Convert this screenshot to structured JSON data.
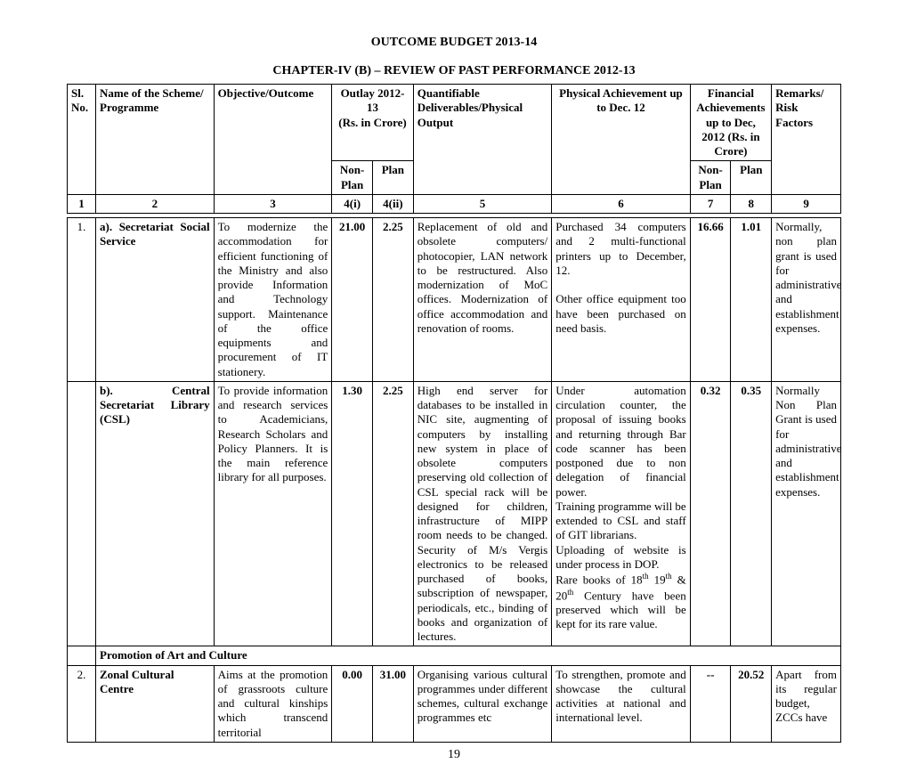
{
  "title": "OUTCOME BUDGET 2013-14",
  "chapter": "CHAPTER-IV (B) – REVIEW OF PAST PERFORMANCE 2012-13",
  "pagenum": "19",
  "head": {
    "sl": "Sl. No.",
    "name": "Name of the Scheme/ Programme",
    "obj": "Objective/Outcome",
    "outlay": "Outlay 2012-13",
    "outlay_sub": "(Rs. in Crore)",
    "deliv": "Quantifiable Deliverables/Physical Output",
    "phys": "Physical Achievement up to Dec. 12",
    "fin": "Financial Achievements up to Dec, 2012 (Rs. in Crore)",
    "rem": "Remarks/ Risk Factors",
    "nonplan": "Non-Plan",
    "plan": "Plan"
  },
  "nums": {
    "c1": "1",
    "c2": "2",
    "c3": "3",
    "c4i": "4(i)",
    "c4ii": "4(ii)",
    "c5": "5",
    "c6": "6",
    "c7": "7",
    "c8": "8",
    "c9": "9"
  },
  "r1": {
    "sl": "1.",
    "name": "a). Secretariat Social Service",
    "obj": "To modernize the accommodation for efficient functioning of the Ministry and also provide Information and Technology support. Maintenance of the office equipments and procurement of IT stationery.",
    "np": "21.00",
    "plan": "2.25",
    "deliv": "Replacement of old and obsolete computers/ photocopier, LAN network to be restructured. Also modernization of MoC offices. Modernization of office accommodation and renovation of rooms.",
    "phys": "Purchased 34 computers and 2 multi-functional printers up to December, 12.",
    "phys2": "Other office equipment too have been purchased on need basis.",
    "fnp": "16.66",
    "fpl": "1.01",
    "rem": "Normally, non plan grant is used for administrative and establishment expenses."
  },
  "r2": {
    "name": "b). Central Secretariat Library (CSL)",
    "obj": "To provide information and research services to Academicians, Research Scholars and Policy Planners. It is the main reference library for all purposes.",
    "np": "1.30",
    "plan": "2.25",
    "deliv": "High end server for databases to be installed in NIC site, augmenting of computers by installing new system in place of obsolete computers preserving old collection of CSL special rack will be designed for children, infrastructure of MIPP room needs to be changed. Security of M/s Vergis electronics to be released purchased of books, subscription of newspaper, periodicals, etc., binding of books and organization of lectures.",
    "phys1": "Under automation circulation counter, the proposal of issuing books and returning through Bar code scanner has been postponed due to non delegation of financial power.",
    "phys2": "Training programme will be extended to CSL and staff of GIT librarians.",
    "phys3": "Uploading of website is under process in DOP.",
    "phys4a": "Rare books of 18",
    "phys4b": " 19",
    "phys4c": " & 20",
    "phys4d": " Century have been preserved which will be kept for its rare value.",
    "th": "th",
    "fnp": "0.32",
    "fpl": "0.35",
    "rem": "Normally Non Plan Grant is used for administrative and establishment expenses."
  },
  "sec": {
    "title": "Promotion of Art and Culture"
  },
  "r3": {
    "sl": "2.",
    "name": "Zonal Cultural Centre",
    "obj": "Aims at the promotion of grassroots culture and cultural kinships which transcend territorial",
    "np": "0.00",
    "plan": "31.00",
    "deliv": "Organising various cultural programmes under different schemes, cultural exchange programmes etc",
    "phys": "To strengthen, promote and showcase the cultural activities at national and international level.",
    "fnp": "--",
    "fpl": "20.52",
    "rem": "Apart from its regular budget, ZCCs have"
  }
}
